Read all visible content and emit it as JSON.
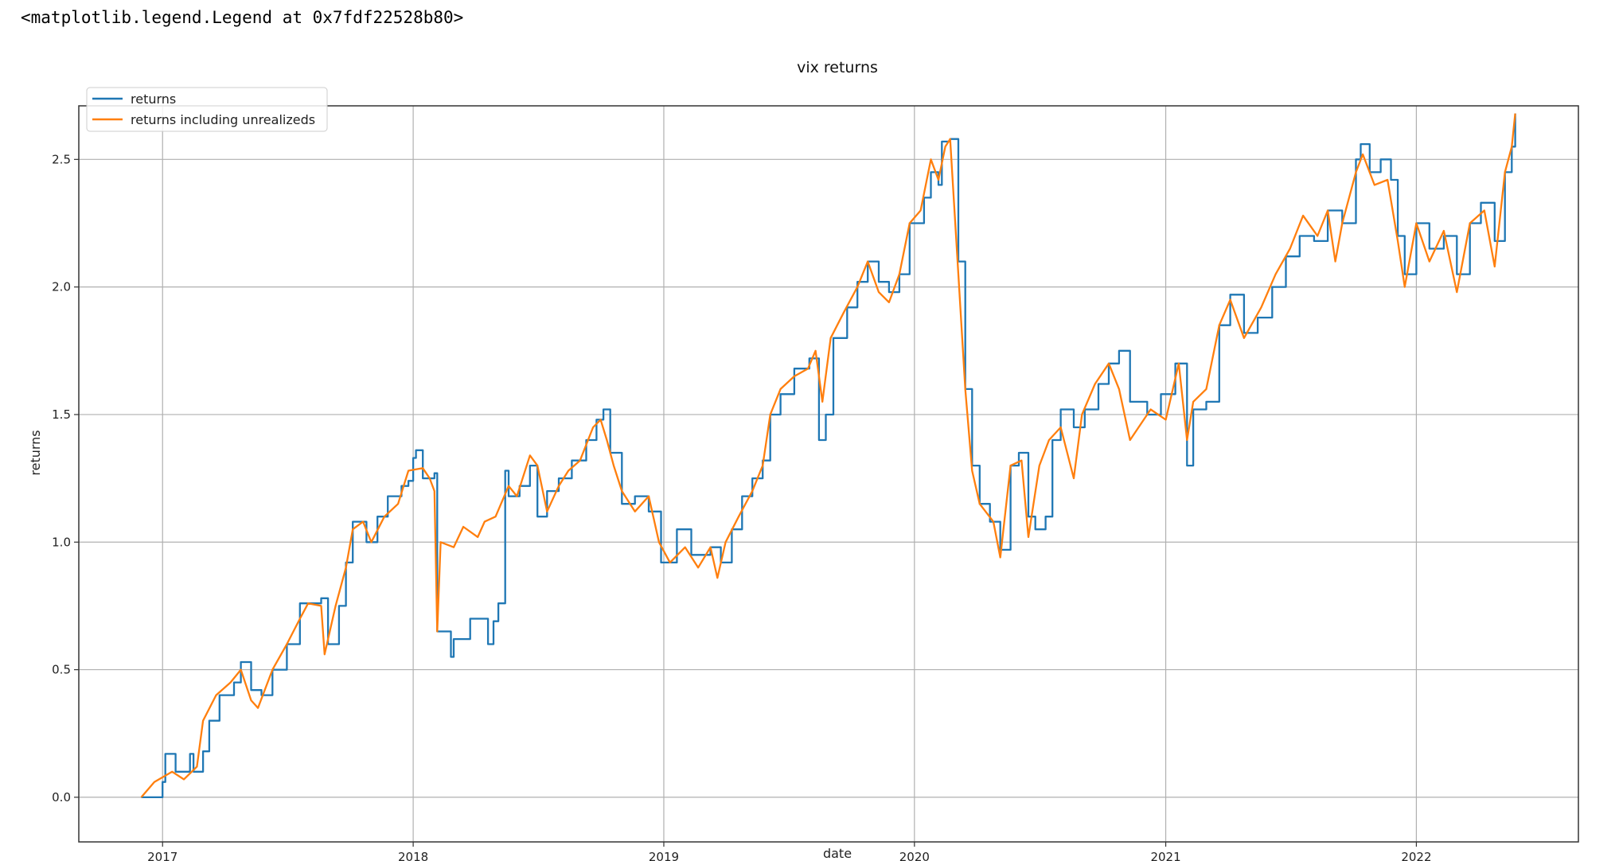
{
  "output_text": "<matplotlib.legend.Legend at 0x7fdf22528b80>",
  "chart_data": {
    "type": "line",
    "title": "vix returns",
    "xlabel": "date",
    "ylabel": "returns",
    "xlim": [
      "2016-09-01",
      "2022-08-25"
    ],
    "ylim": [
      -0.175,
      2.71
    ],
    "xticks": [
      {
        "date": "2017-01-01",
        "label": "2017"
      },
      {
        "date": "2018-01-01",
        "label": "2018"
      },
      {
        "date": "2019-01-01",
        "label": "2019"
      },
      {
        "date": "2020-01-01",
        "label": "2020"
      },
      {
        "date": "2021-01-01",
        "label": "2021"
      },
      {
        "date": "2022-01-01",
        "label": "2022"
      }
    ],
    "yticks": [
      {
        "value": 0,
        "label": "0.0"
      },
      {
        "value": 0.5,
        "label": "0.5"
      },
      {
        "value": 1,
        "label": "1.0"
      },
      {
        "value": 1.5,
        "label": "1.5"
      },
      {
        "value": 2,
        "label": "2.0"
      },
      {
        "value": 2.5,
        "label": "2.5"
      }
    ],
    "grid": true,
    "legend_position": "upper-left",
    "series": [
      {
        "name": "returns",
        "color": "#1f77b4",
        "step": true,
        "points": [
          [
            "2016-12-01",
            0.0
          ],
          [
            "2017-01-01",
            0.06
          ],
          [
            "2017-01-05",
            0.17
          ],
          [
            "2017-01-20",
            0.1
          ],
          [
            "2017-02-10",
            0.17
          ],
          [
            "2017-02-15",
            0.1
          ],
          [
            "2017-03-01",
            0.18
          ],
          [
            "2017-03-10",
            0.3
          ],
          [
            "2017-03-25",
            0.4
          ],
          [
            "2017-04-15",
            0.45
          ],
          [
            "2017-04-25",
            0.53
          ],
          [
            "2017-05-10",
            0.42
          ],
          [
            "2017-05-25",
            0.4
          ],
          [
            "2017-06-10",
            0.5
          ],
          [
            "2017-07-01",
            0.6
          ],
          [
            "2017-07-20",
            0.76
          ],
          [
            "2017-08-20",
            0.78
          ],
          [
            "2017-08-30",
            0.6
          ],
          [
            "2017-09-15",
            0.75
          ],
          [
            "2017-09-25",
            0.92
          ],
          [
            "2017-10-05",
            1.08
          ],
          [
            "2017-10-25",
            1.0
          ],
          [
            "2017-11-10",
            1.1
          ],
          [
            "2017-11-25",
            1.18
          ],
          [
            "2017-12-15",
            1.22
          ],
          [
            "2017-12-25",
            1.24
          ],
          [
            "2018-01-01",
            1.33
          ],
          [
            "2018-01-05",
            1.36
          ],
          [
            "2018-01-15",
            1.25
          ],
          [
            "2018-02-01",
            1.27
          ],
          [
            "2018-02-05",
            0.65
          ],
          [
            "2018-02-25",
            0.55
          ],
          [
            "2018-03-01",
            0.62
          ],
          [
            "2018-03-25",
            0.7
          ],
          [
            "2018-04-20",
            0.6
          ],
          [
            "2018-04-28",
            0.69
          ],
          [
            "2018-05-05",
            0.76
          ],
          [
            "2018-05-15",
            1.28
          ],
          [
            "2018-05-20",
            1.18
          ],
          [
            "2018-06-05",
            1.22
          ],
          [
            "2018-06-20",
            1.3
          ],
          [
            "2018-07-01",
            1.1
          ],
          [
            "2018-07-15",
            1.2
          ],
          [
            "2018-08-01",
            1.25
          ],
          [
            "2018-08-20",
            1.32
          ],
          [
            "2018-09-10",
            1.4
          ],
          [
            "2018-09-25",
            1.48
          ],
          [
            "2018-10-05",
            1.52
          ],
          [
            "2018-10-15",
            1.35
          ],
          [
            "2018-11-01",
            1.15
          ],
          [
            "2018-11-20",
            1.18
          ],
          [
            "2018-12-10",
            1.12
          ],
          [
            "2018-12-28",
            0.92
          ],
          [
            "2019-01-20",
            1.05
          ],
          [
            "2019-02-10",
            0.95
          ],
          [
            "2019-03-10",
            0.98
          ],
          [
            "2019-03-25",
            0.92
          ],
          [
            "2019-04-10",
            1.05
          ],
          [
            "2019-04-25",
            1.18
          ],
          [
            "2019-05-10",
            1.25
          ],
          [
            "2019-05-25",
            1.32
          ],
          [
            "2019-06-05",
            1.5
          ],
          [
            "2019-06-20",
            1.58
          ],
          [
            "2019-07-10",
            1.68
          ],
          [
            "2019-08-01",
            1.72
          ],
          [
            "2019-08-15",
            1.4
          ],
          [
            "2019-08-25",
            1.5
          ],
          [
            "2019-09-05",
            1.8
          ],
          [
            "2019-09-25",
            1.92
          ],
          [
            "2019-10-10",
            2.02
          ],
          [
            "2019-10-25",
            2.1
          ],
          [
            "2019-11-10",
            2.02
          ],
          [
            "2019-11-25",
            1.98
          ],
          [
            "2019-12-10",
            2.05
          ],
          [
            "2019-12-25",
            2.25
          ],
          [
            "2020-01-15",
            2.35
          ],
          [
            "2020-01-25",
            2.45
          ],
          [
            "2020-02-05",
            2.4
          ],
          [
            "2020-02-10",
            2.57
          ],
          [
            "2020-02-22",
            2.58
          ],
          [
            "2020-03-05",
            2.1
          ],
          [
            "2020-03-15",
            1.6
          ],
          [
            "2020-03-25",
            1.3
          ],
          [
            "2020-04-05",
            1.15
          ],
          [
            "2020-04-20",
            1.08
          ],
          [
            "2020-05-05",
            0.97
          ],
          [
            "2020-05-20",
            1.3
          ],
          [
            "2020-06-01",
            1.35
          ],
          [
            "2020-06-15",
            1.1
          ],
          [
            "2020-06-25",
            1.05
          ],
          [
            "2020-07-10",
            1.1
          ],
          [
            "2020-07-20",
            1.4
          ],
          [
            "2020-08-01",
            1.52
          ],
          [
            "2020-08-20",
            1.45
          ],
          [
            "2020-09-05",
            1.52
          ],
          [
            "2020-09-25",
            1.62
          ],
          [
            "2020-10-10",
            1.7
          ],
          [
            "2020-10-25",
            1.75
          ],
          [
            "2020-11-10",
            1.55
          ],
          [
            "2020-12-05",
            1.5
          ],
          [
            "2020-12-25",
            1.58
          ],
          [
            "2021-01-15",
            1.7
          ],
          [
            "2021-02-01",
            1.3
          ],
          [
            "2021-02-10",
            1.52
          ],
          [
            "2021-03-01",
            1.55
          ],
          [
            "2021-03-20",
            1.85
          ],
          [
            "2021-04-05",
            1.97
          ],
          [
            "2021-04-25",
            1.82
          ],
          [
            "2021-05-15",
            1.88
          ],
          [
            "2021-06-05",
            2.0
          ],
          [
            "2021-06-25",
            2.12
          ],
          [
            "2021-07-15",
            2.2
          ],
          [
            "2021-08-05",
            2.18
          ],
          [
            "2021-08-25",
            2.3
          ],
          [
            "2021-09-15",
            2.25
          ],
          [
            "2021-10-05",
            2.5
          ],
          [
            "2021-10-12",
            2.56
          ],
          [
            "2021-10-25",
            2.45
          ],
          [
            "2021-11-10",
            2.5
          ],
          [
            "2021-11-25",
            2.42
          ],
          [
            "2021-12-05",
            2.2
          ],
          [
            "2021-12-15",
            2.05
          ],
          [
            "2022-01-01",
            2.25
          ],
          [
            "2022-01-20",
            2.15
          ],
          [
            "2022-02-10",
            2.2
          ],
          [
            "2022-03-01",
            2.05
          ],
          [
            "2022-03-20",
            2.25
          ],
          [
            "2022-04-05",
            2.33
          ],
          [
            "2022-04-25",
            2.18
          ],
          [
            "2022-05-10",
            2.45
          ],
          [
            "2022-05-20",
            2.55
          ],
          [
            "2022-05-25",
            2.68
          ]
        ]
      },
      {
        "name": "returns including unrealizeds",
        "color": "#ff7f0e",
        "step": false,
        "points": [
          [
            "2016-12-01",
            0.0
          ],
          [
            "2016-12-20",
            0.06
          ],
          [
            "2017-01-15",
            0.1
          ],
          [
            "2017-02-01",
            0.07
          ],
          [
            "2017-02-20",
            0.12
          ],
          [
            "2017-03-01",
            0.3
          ],
          [
            "2017-03-20",
            0.4
          ],
          [
            "2017-04-10",
            0.45
          ],
          [
            "2017-04-25",
            0.5
          ],
          [
            "2017-05-10",
            0.38
          ],
          [
            "2017-05-20",
            0.35
          ],
          [
            "2017-06-10",
            0.5
          ],
          [
            "2017-07-01",
            0.6
          ],
          [
            "2017-07-20",
            0.7
          ],
          [
            "2017-08-01",
            0.76
          ],
          [
            "2017-08-20",
            0.75
          ],
          [
            "2017-08-25",
            0.56
          ],
          [
            "2017-09-10",
            0.75
          ],
          [
            "2017-09-25",
            0.9
          ],
          [
            "2017-10-05",
            1.05
          ],
          [
            "2017-10-20",
            1.08
          ],
          [
            "2017-11-01",
            1.0
          ],
          [
            "2017-11-20",
            1.1
          ],
          [
            "2017-12-10",
            1.15
          ],
          [
            "2017-12-25",
            1.28
          ],
          [
            "2018-01-15",
            1.29
          ],
          [
            "2018-01-25",
            1.25
          ],
          [
            "2018-02-01",
            1.2
          ],
          [
            "2018-02-05",
            0.65
          ],
          [
            "2018-02-10",
            1.0
          ],
          [
            "2018-03-01",
            0.98
          ],
          [
            "2018-03-15",
            1.06
          ],
          [
            "2018-04-05",
            1.02
          ],
          [
            "2018-04-15",
            1.08
          ],
          [
            "2018-05-01",
            1.1
          ],
          [
            "2018-05-20",
            1.22
          ],
          [
            "2018-06-01",
            1.18
          ],
          [
            "2018-06-20",
            1.34
          ],
          [
            "2018-07-01",
            1.3
          ],
          [
            "2018-07-15",
            1.12
          ],
          [
            "2018-08-01",
            1.22
          ],
          [
            "2018-08-15",
            1.28
          ],
          [
            "2018-09-01",
            1.32
          ],
          [
            "2018-09-20",
            1.45
          ],
          [
            "2018-10-01",
            1.48
          ],
          [
            "2018-10-10",
            1.4
          ],
          [
            "2018-10-20",
            1.3
          ],
          [
            "2018-11-01",
            1.2
          ],
          [
            "2018-11-20",
            1.12
          ],
          [
            "2018-12-10",
            1.18
          ],
          [
            "2018-12-25",
            1.0
          ],
          [
            "2019-01-10",
            0.92
          ],
          [
            "2019-02-01",
            0.98
          ],
          [
            "2019-02-20",
            0.9
          ],
          [
            "2019-03-10",
            0.98
          ],
          [
            "2019-03-20",
            0.86
          ],
          [
            "2019-04-01",
            1.0
          ],
          [
            "2019-04-20",
            1.1
          ],
          [
            "2019-05-10",
            1.2
          ],
          [
            "2019-05-25",
            1.3
          ],
          [
            "2019-06-05",
            1.5
          ],
          [
            "2019-06-20",
            1.6
          ],
          [
            "2019-07-10",
            1.65
          ],
          [
            "2019-07-30",
            1.68
          ],
          [
            "2019-08-10",
            1.75
          ],
          [
            "2019-08-20",
            1.55
          ],
          [
            "2019-09-01",
            1.8
          ],
          [
            "2019-09-20",
            1.9
          ],
          [
            "2019-10-10",
            2.0
          ],
          [
            "2019-10-25",
            2.1
          ],
          [
            "2019-11-10",
            1.98
          ],
          [
            "2019-11-25",
            1.94
          ],
          [
            "2019-12-10",
            2.05
          ],
          [
            "2019-12-25",
            2.25
          ],
          [
            "2020-01-10",
            2.3
          ],
          [
            "2020-01-25",
            2.5
          ],
          [
            "2020-02-05",
            2.42
          ],
          [
            "2020-02-15",
            2.55
          ],
          [
            "2020-02-22",
            2.58
          ],
          [
            "2020-03-05",
            2.05
          ],
          [
            "2020-03-15",
            1.6
          ],
          [
            "2020-03-25",
            1.28
          ],
          [
            "2020-04-05",
            1.15
          ],
          [
            "2020-04-25",
            1.08
          ],
          [
            "2020-05-05",
            0.94
          ],
          [
            "2020-05-20",
            1.3
          ],
          [
            "2020-06-05",
            1.32
          ],
          [
            "2020-06-15",
            1.02
          ],
          [
            "2020-07-01",
            1.3
          ],
          [
            "2020-07-15",
            1.4
          ],
          [
            "2020-08-01",
            1.45
          ],
          [
            "2020-08-20",
            1.25
          ],
          [
            "2020-09-01",
            1.5
          ],
          [
            "2020-09-20",
            1.62
          ],
          [
            "2020-10-10",
            1.7
          ],
          [
            "2020-10-25",
            1.6
          ],
          [
            "2020-11-10",
            1.4
          ],
          [
            "2020-12-10",
            1.52
          ],
          [
            "2021-01-01",
            1.48
          ],
          [
            "2021-01-20",
            1.7
          ],
          [
            "2021-02-01",
            1.4
          ],
          [
            "2021-02-10",
            1.55
          ],
          [
            "2021-03-01",
            1.6
          ],
          [
            "2021-03-20",
            1.85
          ],
          [
            "2021-04-05",
            1.95
          ],
          [
            "2021-04-25",
            1.8
          ],
          [
            "2021-05-20",
            1.92
          ],
          [
            "2021-06-10",
            2.05
          ],
          [
            "2021-07-01",
            2.15
          ],
          [
            "2021-07-20",
            2.28
          ],
          [
            "2021-08-10",
            2.2
          ],
          [
            "2021-08-25",
            2.3
          ],
          [
            "2021-09-05",
            2.1
          ],
          [
            "2021-09-15",
            2.25
          ],
          [
            "2021-10-05",
            2.45
          ],
          [
            "2021-10-15",
            2.52
          ],
          [
            "2021-11-01",
            2.4
          ],
          [
            "2021-11-20",
            2.42
          ],
          [
            "2021-12-05",
            2.18
          ],
          [
            "2021-12-15",
            2.0
          ],
          [
            "2022-01-01",
            2.25
          ],
          [
            "2022-01-20",
            2.1
          ],
          [
            "2022-02-10",
            2.22
          ],
          [
            "2022-03-01",
            1.98
          ],
          [
            "2022-03-20",
            2.25
          ],
          [
            "2022-04-10",
            2.3
          ],
          [
            "2022-04-25",
            2.08
          ],
          [
            "2022-05-10",
            2.45
          ],
          [
            "2022-05-20",
            2.55
          ],
          [
            "2022-05-25",
            2.68
          ]
        ]
      }
    ]
  }
}
